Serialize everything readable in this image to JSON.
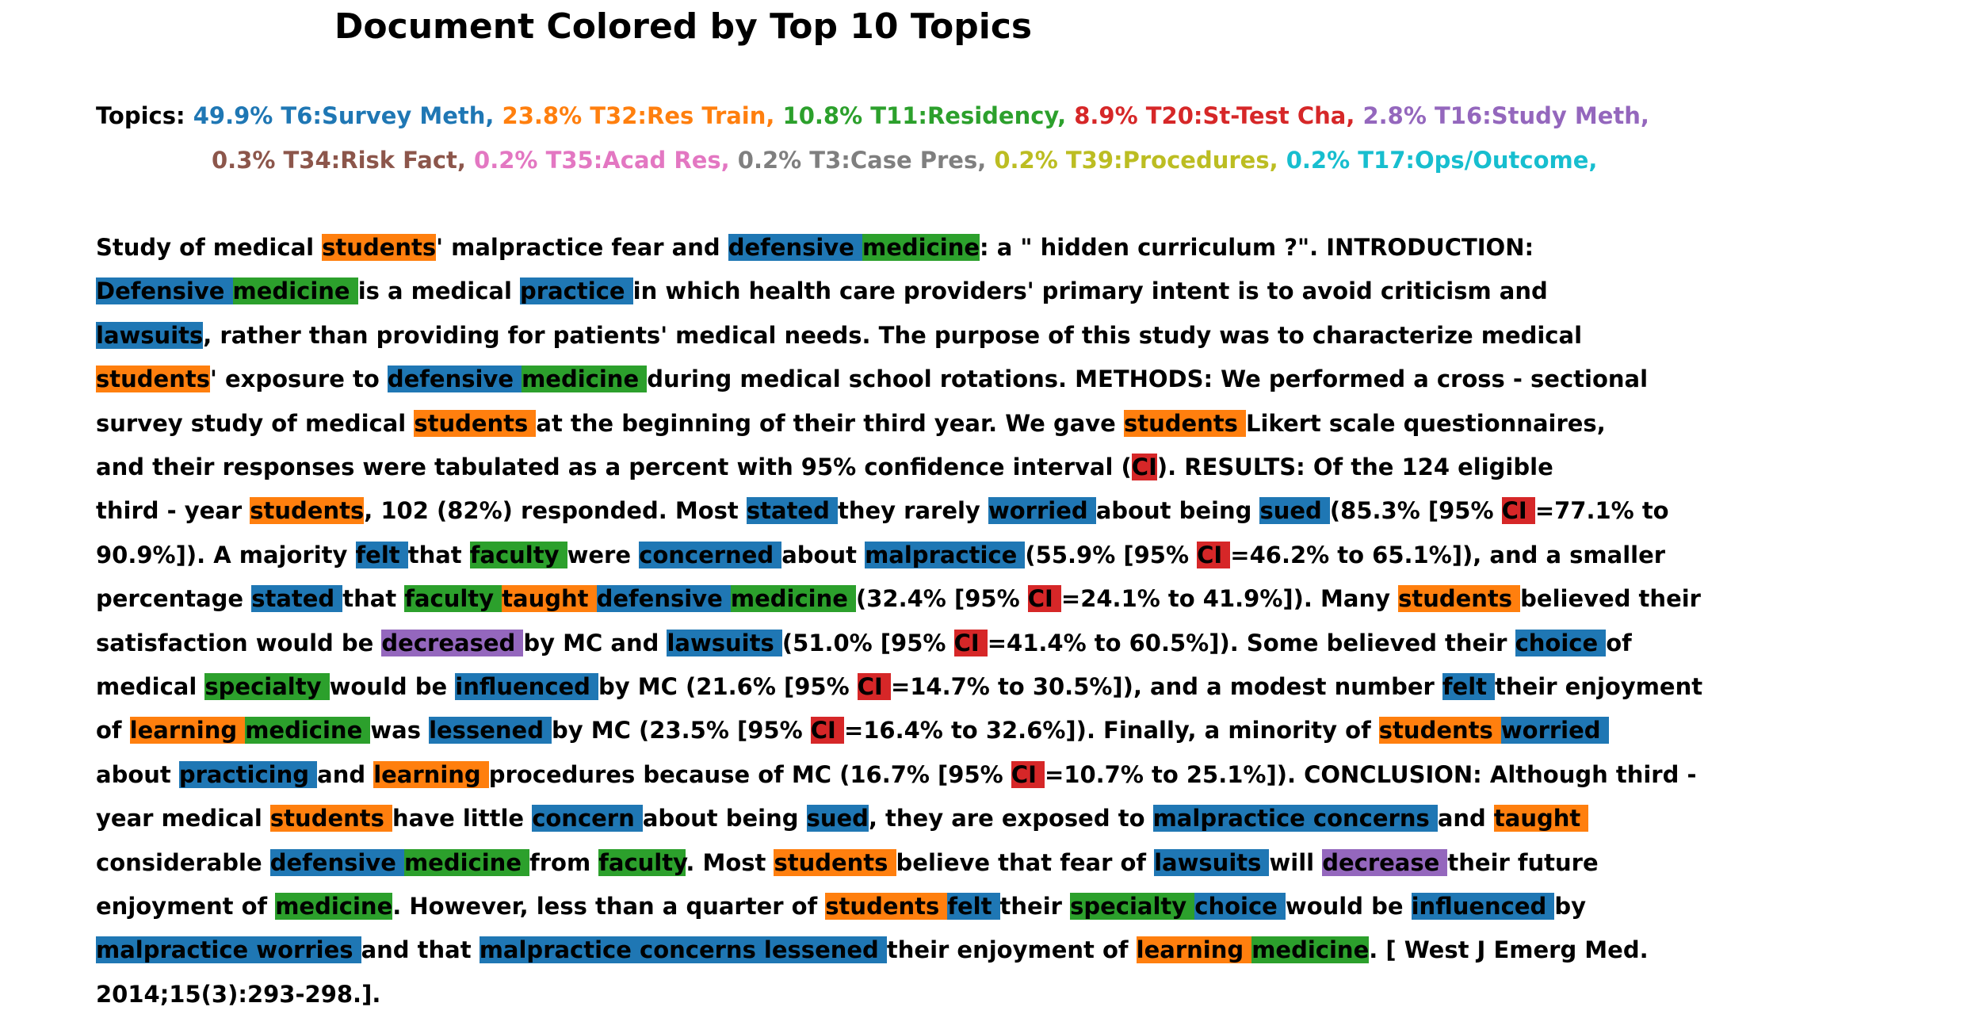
{
  "title": "Document Colored by Top 10 Topics",
  "topics": {
    "label": "Topics:",
    "rows": [
      [
        {
          "text": "49.9% T6:Survey Meth,",
          "color": "#1f77b4"
        },
        {
          "text": "23.8% T32:Res Train,",
          "color": "#ff7f0e"
        },
        {
          "text": "10.8% T11:Residency,",
          "color": "#2ca02c"
        },
        {
          "text": "8.9% T20:St-Test Cha,",
          "color": "#d62728"
        },
        {
          "text": "2.8% T16:Study Meth,",
          "color": "#9467bd"
        }
      ],
      [
        {
          "text": "0.3% T34:Risk Fact,",
          "color": "#8c564b"
        },
        {
          "text": "0.2% T35:Acad Res,",
          "color": "#e377c2"
        },
        {
          "text": "0.2% T3:Case Pres,",
          "color": "#7f7f7f"
        },
        {
          "text": "0.2% T39:Procedures,",
          "color": "#bcbd22"
        },
        {
          "text": "0.2% T17:Ops/Outcome,",
          "color": "#17becf"
        }
      ]
    ]
  },
  "body": {
    "lines": [
      [
        {
          "text": "Study of medical "
        },
        {
          "text": "students",
          "color": "#ff7f0e"
        },
        {
          "text": "' malpractice fear and "
        },
        {
          "text": "defensive ",
          "color": "#1f77b4"
        },
        {
          "text": "medicine",
          "color": "#2ca02c"
        },
        {
          "text": ": a \" hidden curriculum ?\". INTRODUCTION:"
        }
      ],
      [
        {
          "text": "Defensive ",
          "color": "#1f77b4"
        },
        {
          "text": "medicine ",
          "color": "#2ca02c"
        },
        {
          "text": "is a medical "
        },
        {
          "text": "practice ",
          "color": "#1f77b4"
        },
        {
          "text": "in which health care providers' primary intent is to avoid criticism and"
        }
      ],
      [
        {
          "text": "lawsuits",
          "color": "#1f77b4"
        },
        {
          "text": ", rather than providing for patients' medical needs. The purpose of this study was to characterize medical"
        }
      ],
      [
        {
          "text": "students",
          "color": "#ff7f0e"
        },
        {
          "text": "' exposure to "
        },
        {
          "text": "defensive ",
          "color": "#1f77b4"
        },
        {
          "text": "medicine ",
          "color": "#2ca02c"
        },
        {
          "text": "during medical school rotations. METHODS: We performed a cross - sectional"
        }
      ],
      [
        {
          "text": "survey study of medical "
        },
        {
          "text": "students ",
          "color": "#ff7f0e"
        },
        {
          "text": "at the beginning of their third year. We gave "
        },
        {
          "text": "students ",
          "color": "#ff7f0e"
        },
        {
          "text": "Likert scale questionnaires,"
        }
      ],
      [
        {
          "text": "and their responses were tabulated as a percent with 95% confidence interval ("
        },
        {
          "text": "CI",
          "color": "#d62728"
        },
        {
          "text": "). RESULTS: Of the 124 eligible"
        }
      ],
      [
        {
          "text": "third - year "
        },
        {
          "text": "students",
          "color": "#ff7f0e"
        },
        {
          "text": ", 102 (82%) responded. Most "
        },
        {
          "text": "stated ",
          "color": "#1f77b4"
        },
        {
          "text": "they rarely "
        },
        {
          "text": "worried ",
          "color": "#1f77b4"
        },
        {
          "text": "about being "
        },
        {
          "text": "sued ",
          "color": "#1f77b4"
        },
        {
          "text": "(85.3% [95% "
        },
        {
          "text": "CI ",
          "color": "#d62728"
        },
        {
          "text": "=77.1% to"
        }
      ],
      [
        {
          "text": "90.9%]). A majority "
        },
        {
          "text": "felt ",
          "color": "#1f77b4"
        },
        {
          "text": "that "
        },
        {
          "text": "faculty ",
          "color": "#2ca02c"
        },
        {
          "text": "were "
        },
        {
          "text": "concerned ",
          "color": "#1f77b4"
        },
        {
          "text": "about "
        },
        {
          "text": "malpractice ",
          "color": "#1f77b4"
        },
        {
          "text": "(55.9% [95% "
        },
        {
          "text": "CI ",
          "color": "#d62728"
        },
        {
          "text": "=46.2% to 65.1%]), and a smaller"
        }
      ],
      [
        {
          "text": "percentage "
        },
        {
          "text": "stated ",
          "color": "#1f77b4"
        },
        {
          "text": "that "
        },
        {
          "text": "faculty ",
          "color": "#2ca02c"
        },
        {
          "text": "taught ",
          "color": "#ff7f0e"
        },
        {
          "text": "defensive ",
          "color": "#1f77b4"
        },
        {
          "text": "medicine ",
          "color": "#2ca02c"
        },
        {
          "text": "(32.4% [95% "
        },
        {
          "text": "CI ",
          "color": "#d62728"
        },
        {
          "text": "=24.1% to 41.9%]). Many "
        },
        {
          "text": "students ",
          "color": "#ff7f0e"
        },
        {
          "text": "believed their"
        }
      ],
      [
        {
          "text": "satisfaction would be "
        },
        {
          "text": "decreased ",
          "color": "#9467bd"
        },
        {
          "text": "by MC and "
        },
        {
          "text": "lawsuits ",
          "color": "#1f77b4"
        },
        {
          "text": "(51.0% [95% "
        },
        {
          "text": "CI ",
          "color": "#d62728"
        },
        {
          "text": "=41.4% to 60.5%]). Some believed their "
        },
        {
          "text": "choice ",
          "color": "#1f77b4"
        },
        {
          "text": "of"
        }
      ],
      [
        {
          "text": "medical "
        },
        {
          "text": "specialty ",
          "color": "#2ca02c"
        },
        {
          "text": "would be "
        },
        {
          "text": "influenced ",
          "color": "#1f77b4"
        },
        {
          "text": "by MC (21.6% [95% "
        },
        {
          "text": "CI ",
          "color": "#d62728"
        },
        {
          "text": "=14.7% to 30.5%]), and a modest number "
        },
        {
          "text": "felt ",
          "color": "#1f77b4"
        },
        {
          "text": "their enjoyment"
        }
      ],
      [
        {
          "text": "of "
        },
        {
          "text": "learning ",
          "color": "#ff7f0e"
        },
        {
          "text": "medicine ",
          "color": "#2ca02c"
        },
        {
          "text": "was "
        },
        {
          "text": "lessened ",
          "color": "#1f77b4"
        },
        {
          "text": "by MC (23.5% [95% "
        },
        {
          "text": "CI ",
          "color": "#d62728"
        },
        {
          "text": "=16.4% to 32.6%]). Finally, a minority of "
        },
        {
          "text": "students ",
          "color": "#ff7f0e"
        },
        {
          "text": "worried ",
          "color": "#1f77b4"
        }
      ],
      [
        {
          "text": "about "
        },
        {
          "text": "practicing ",
          "color": "#1f77b4"
        },
        {
          "text": "and "
        },
        {
          "text": "learning ",
          "color": "#ff7f0e"
        },
        {
          "text": "procedures because of MC (16.7% [95% "
        },
        {
          "text": "CI ",
          "color": "#d62728"
        },
        {
          "text": "=10.7% to 25.1%]). CONCLUSION: Although third -"
        }
      ],
      [
        {
          "text": "year medical "
        },
        {
          "text": "students ",
          "color": "#ff7f0e"
        },
        {
          "text": "have little "
        },
        {
          "text": "concern ",
          "color": "#1f77b4"
        },
        {
          "text": "about being "
        },
        {
          "text": "sued",
          "color": "#1f77b4"
        },
        {
          "text": ", they are exposed to "
        },
        {
          "text": "malpractice concerns ",
          "color": "#1f77b4"
        },
        {
          "text": "and "
        },
        {
          "text": "taught ",
          "color": "#ff7f0e"
        }
      ],
      [
        {
          "text": "considerable "
        },
        {
          "text": "defensive ",
          "color": "#1f77b4"
        },
        {
          "text": "medicine ",
          "color": "#2ca02c"
        },
        {
          "text": "from "
        },
        {
          "text": "faculty",
          "color": "#2ca02c"
        },
        {
          "text": ". Most "
        },
        {
          "text": "students ",
          "color": "#ff7f0e"
        },
        {
          "text": "believe that fear of "
        },
        {
          "text": "lawsuits ",
          "color": "#1f77b4"
        },
        {
          "text": "will "
        },
        {
          "text": "decrease ",
          "color": "#9467bd"
        },
        {
          "text": "their future"
        }
      ],
      [
        {
          "text": "enjoyment of "
        },
        {
          "text": "medicine",
          "color": "#2ca02c"
        },
        {
          "text": ". However, less than a quarter of "
        },
        {
          "text": "students ",
          "color": "#ff7f0e"
        },
        {
          "text": "felt ",
          "color": "#1f77b4"
        },
        {
          "text": "their "
        },
        {
          "text": "specialty ",
          "color": "#2ca02c"
        },
        {
          "text": "choice ",
          "color": "#1f77b4"
        },
        {
          "text": "would be "
        },
        {
          "text": "influenced ",
          "color": "#1f77b4"
        },
        {
          "text": "by"
        }
      ],
      [
        {
          "text": "malpractice worries ",
          "color": "#1f77b4"
        },
        {
          "text": "and that "
        },
        {
          "text": "malpractice concerns lessened ",
          "color": "#1f77b4"
        },
        {
          "text": "their enjoyment of "
        },
        {
          "text": "learning ",
          "color": "#ff7f0e"
        },
        {
          "text": "medicine",
          "color": "#2ca02c"
        },
        {
          "text": ". [ West J Emerg Med."
        }
      ],
      [
        {
          "text": "2014;15(3):293-298.]."
        }
      ]
    ]
  }
}
